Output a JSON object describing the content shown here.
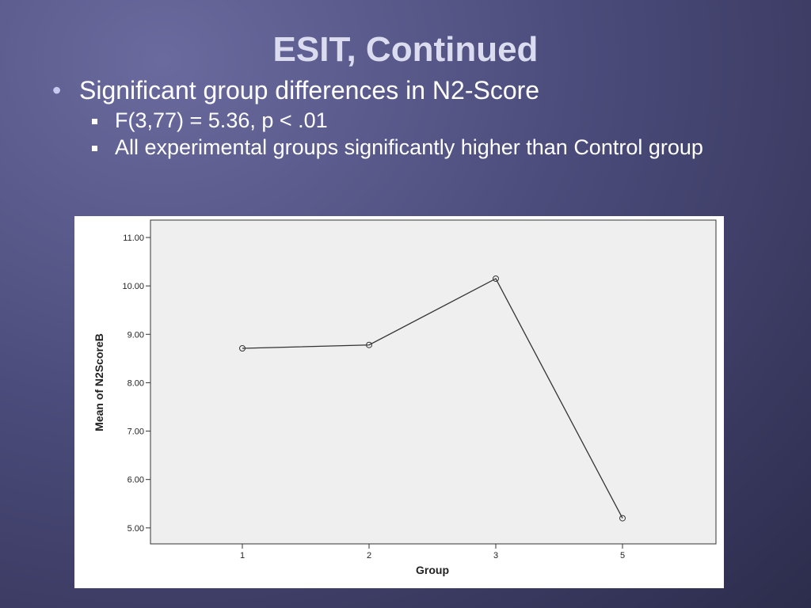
{
  "slide": {
    "title": "ESIT, Continued",
    "bullets": [
      {
        "text": "Significant group differences in N2-Score",
        "sub": [
          "F(3,77) = 5.36, p < .01",
          "All experimental groups significantly higher than Control group"
        ]
      }
    ]
  },
  "chart_data": {
    "type": "line",
    "x_label": "Group",
    "y_label": "Mean of N2ScoreB",
    "categories": [
      "1",
      "2",
      "3",
      "5"
    ],
    "values": [
      8.71,
      8.78,
      10.15,
      5.2
    ],
    "color": "#333333",
    "ylim": [
      4.67,
      11.36
    ],
    "yticks": [
      {
        "value": 5,
        "label": "5.00"
      },
      {
        "value": 6,
        "label": "6.00"
      },
      {
        "value": 7,
        "label": "7.00"
      },
      {
        "value": 8,
        "label": "8.00"
      },
      {
        "value": 9,
        "label": "9.00"
      },
      {
        "value": 10,
        "label": "10.00"
      },
      {
        "value": 11,
        "label": "11.00"
      }
    ]
  }
}
